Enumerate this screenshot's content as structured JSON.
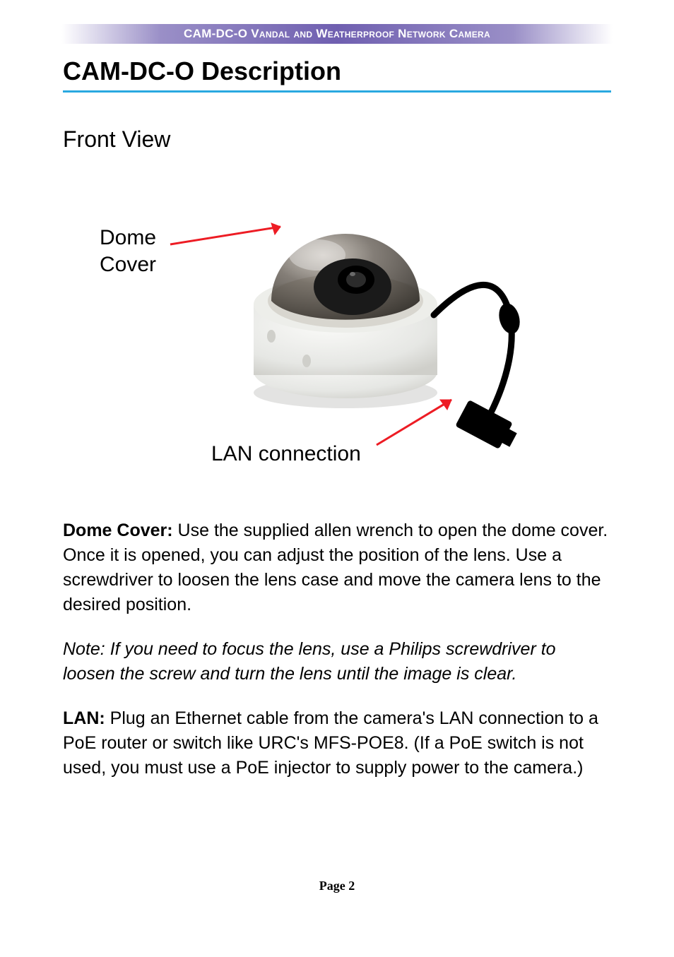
{
  "header": {
    "text": "CAM-DC-O Vandal and Weatherproof Network Camera",
    "bg_gradient_mid": "#6f5fb0",
    "text_color": "#ffffff"
  },
  "title": "CAM-DC-O Description",
  "title_underline_color": "#29a9e0",
  "subheading": "Front View",
  "figure": {
    "labels": {
      "dome": "Dome Cover",
      "lan": "LAN connection"
    },
    "arrow_color": "#ed1c24",
    "camera": {
      "base_color": "#e6e7e4",
      "dome_tint": "#3a3632",
      "lens_color": "#1a1a1a",
      "cable_color": "#000000",
      "connector_color": "#000000",
      "shadow_color": "#c8c8c6"
    }
  },
  "paragraphs": {
    "dome_label": "Dome Cover:",
    "dome_text": " Use the supplied allen wrench to open the dome cover. Once it is opened, you can adjust the position of the lens. Use a screwdriver to loosen the lens case and move the camera lens to the desired position.",
    "note": "Note: If you need to focus the lens, use a Philips screwdriver to loosen the screw and turn the lens until the image is clear.",
    "lan_label": "LAN:",
    "lan_text": " Plug an Ethernet cable from the camera's LAN connection to a PoE router or switch like URC's MFS-POE8. (If a PoE switch is not used, you must use a PoE injector to supply power to the camera.)"
  },
  "footer": {
    "label": "Page 2"
  }
}
